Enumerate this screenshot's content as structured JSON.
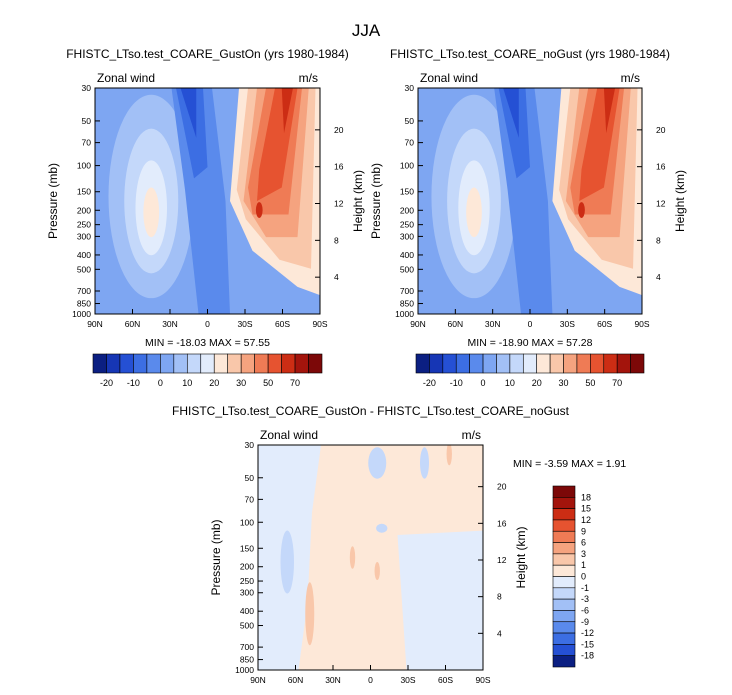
{
  "figure": {
    "title": "JJA"
  },
  "chart_data": [
    {
      "type": "heatmap",
      "title": "FHISTC_LTso.test_COARE_GustOn (yrs 1980-1984)",
      "variable": "Zonal wind",
      "units": "m/s",
      "xlabel": "",
      "ylabel": "Pressure (mb)",
      "y2label": "Height (km)",
      "xticks": [
        "90N",
        "60N",
        "30N",
        "0",
        "30S",
        "60S",
        "90S"
      ],
      "yticks": [
        "30",
        "50",
        "70",
        "100",
        "150",
        "200",
        "250",
        "300",
        "400",
        "500",
        "700",
        "850",
        "1000"
      ],
      "y2ticks": [
        "20",
        "16",
        "12",
        "8",
        "4"
      ],
      "ylim": [
        1000,
        30
      ],
      "y_scale": "log",
      "stats": "MIN = -18.03  MAX =  57.55",
      "colorbar": {
        "orientation": "horizontal",
        "labels": [
          "-20",
          "-10",
          "0",
          "10",
          "20",
          "30",
          "50",
          "70"
        ],
        "colors": [
          "#0b1f82",
          "#1636b5",
          "#2550d4",
          "#3c6ee3",
          "#5a8aec",
          "#7ea6f2",
          "#a2c0f6",
          "#c4d8fa",
          "#e2ecfc",
          "#fde8d8",
          "#f9c7aa",
          "#f5a37f",
          "#ef7b55",
          "#e65330",
          "#cc2d14",
          "#a3140c",
          "#7c0808"
        ]
      }
    },
    {
      "type": "heatmap",
      "title": "FHISTC_LTso.test_COARE_noGust (yrs 1980-1984)",
      "variable": "Zonal wind",
      "units": "m/s",
      "xlabel": "",
      "ylabel": "Pressure (mb)",
      "y2label": "Height (km)",
      "xticks": [
        "90N",
        "60N",
        "30N",
        "0",
        "30S",
        "60S",
        "90S"
      ],
      "yticks": [
        "30",
        "50",
        "70",
        "100",
        "150",
        "200",
        "250",
        "300",
        "400",
        "500",
        "700",
        "850",
        "1000"
      ],
      "y2ticks": [
        "20",
        "16",
        "12",
        "8",
        "4"
      ],
      "ylim": [
        1000,
        30
      ],
      "y_scale": "log",
      "stats": "MIN = -18.90  MAX =  57.28",
      "colorbar": {
        "orientation": "horizontal",
        "labels": [
          "-20",
          "-10",
          "0",
          "10",
          "20",
          "30",
          "50",
          "70"
        ],
        "colors": [
          "#0b1f82",
          "#1636b5",
          "#2550d4",
          "#3c6ee3",
          "#5a8aec",
          "#7ea6f2",
          "#a2c0f6",
          "#c4d8fa",
          "#e2ecfc",
          "#fde8d8",
          "#f9c7aa",
          "#f5a37f",
          "#ef7b55",
          "#e65330",
          "#cc2d14",
          "#a3140c",
          "#7c0808"
        ]
      }
    },
    {
      "type": "heatmap",
      "title": "FHISTC_LTso.test_COARE_GustOn - FHISTC_LTso.test_COARE_noGust",
      "variable": "Zonal wind",
      "units": "m/s",
      "xlabel": "",
      "ylabel": "Pressure (mb)",
      "y2label": "Height (km)",
      "xticks": [
        "90N",
        "60N",
        "30N",
        "0",
        "30S",
        "60S",
        "90S"
      ],
      "yticks": [
        "30",
        "50",
        "70",
        "100",
        "150",
        "200",
        "250",
        "300",
        "400",
        "500",
        "700",
        "850",
        "1000"
      ],
      "y2ticks": [
        "20",
        "16",
        "12",
        "8",
        "4"
      ],
      "ylim": [
        1000,
        30
      ],
      "y_scale": "log",
      "stats": "MIN = -3.59  MAX =  1.91",
      "colorbar": {
        "orientation": "vertical",
        "labels": [
          "18",
          "15",
          "12",
          "9",
          "6",
          "3",
          "1",
          "0",
          "-1",
          "-3",
          "-6",
          "-9",
          "-12",
          "-15",
          "-18"
        ],
        "colors": [
          "#7c0808",
          "#a3140c",
          "#cc2d14",
          "#e65330",
          "#ef7b55",
          "#f5a37f",
          "#f9c7aa",
          "#fde8d8",
          "#e2ecfc",
          "#c4d8fa",
          "#a2c0f6",
          "#7ea6f2",
          "#5a8aec",
          "#3c6ee3",
          "#2550d4",
          "#0b1f82"
        ]
      }
    }
  ]
}
